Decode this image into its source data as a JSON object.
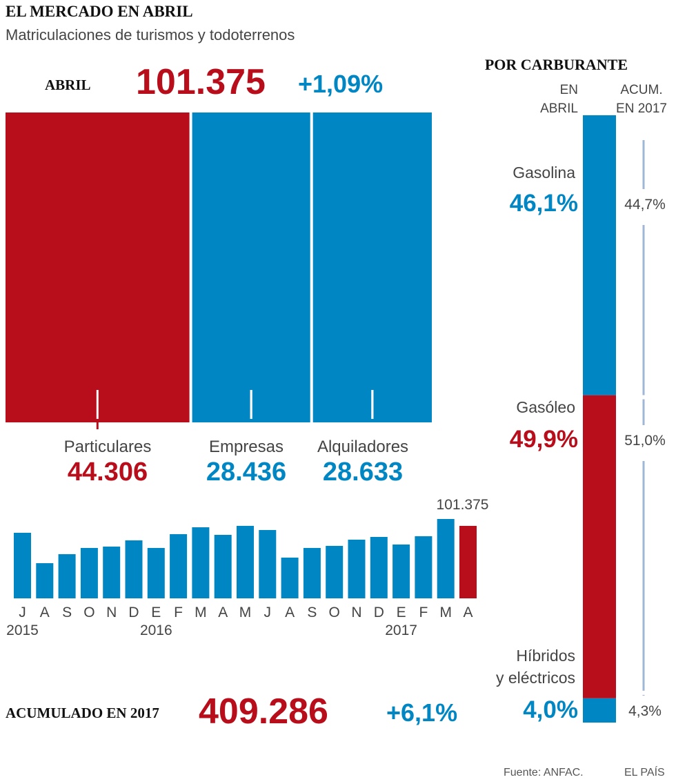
{
  "title": "EL MERCADO EN ABRIL",
  "subtitle": "Matriculaciones de turismos y todoterrenos",
  "summary": {
    "label": "ABRIL",
    "total": "101.375",
    "change": "+1,09%"
  },
  "accumulated": {
    "label": "ACUMULADO EN 2017",
    "total": "409.286",
    "change": "+6,1%"
  },
  "source": "Fuente: ANFAC.",
  "credit": "EL PAÍS",
  "chart_data": [
    {
      "type": "mosaic",
      "categories": [
        "Particulares",
        "Empresas",
        "Alquiladores"
      ],
      "values": [
        44306,
        28436,
        28633
      ],
      "value_labels": [
        "44.306",
        "28.436",
        "28.633"
      ],
      "colors": [
        "#b80d1a",
        "#0086c3",
        "#0086c3"
      ]
    },
    {
      "type": "bar",
      "categories": [
        "J",
        "A",
        "S",
        "O",
        "N",
        "D",
        "E",
        "F",
        "M",
        "A",
        "M",
        "J",
        "A",
        "S",
        "O",
        "N",
        "D",
        "E",
        "F",
        "M",
        "A"
      ],
      "year_labels": [
        "2015",
        null,
        null,
        null,
        null,
        null,
        "2016",
        null,
        null,
        null,
        null,
        null,
        null,
        null,
        null,
        null,
        null,
        "2017",
        null,
        null,
        null
      ],
      "values": [
        91700,
        49200,
        61800,
        70500,
        72400,
        81100,
        70500,
        89800,
        99400,
        88800,
        101400,
        95600,
        57000,
        70500,
        73400,
        82100,
        85900,
        75300,
        86900,
        111000,
        101375
      ],
      "value_labels": [
        null,
        null,
        null,
        null,
        null,
        null,
        null,
        null,
        null,
        null,
        null,
        null,
        null,
        null,
        null,
        null,
        null,
        null,
        null,
        null,
        "101.375"
      ],
      "colors": [
        "#0086c3",
        "#0086c3",
        "#0086c3",
        "#0086c3",
        "#0086c3",
        "#0086c3",
        "#0086c3",
        "#0086c3",
        "#0086c3",
        "#0086c3",
        "#0086c3",
        "#0086c3",
        "#0086c3",
        "#0086c3",
        "#0086c3",
        "#0086c3",
        "#0086c3",
        "#0086c3",
        "#0086c3",
        "#0086c3",
        "#b80d1a"
      ]
    },
    {
      "type": "stacked-column",
      "title": "POR CARBURANTE",
      "categories": [
        [
          "Gasolina"
        ],
        [
          "Gasóleo"
        ],
        [
          "Híbridos",
          "y eléctricos"
        ]
      ],
      "colors": [
        "#0086c3",
        "#b80d1a",
        "#0086c3"
      ],
      "series": [
        {
          "name": [
            "EN",
            "ABRIL"
          ],
          "values": [
            46.1,
            49.9,
            4.0
          ],
          "value_labels": [
            "46,1%",
            "49,9%",
            "4,0%"
          ]
        },
        {
          "name": [
            "ACUM.",
            "EN 2017"
          ],
          "values": [
            44.7,
            51.0,
            4.3
          ],
          "value_labels": [
            "44,7%",
            "51,0%",
            "4,3%"
          ],
          "color": "#9fb7d6"
        }
      ]
    }
  ]
}
